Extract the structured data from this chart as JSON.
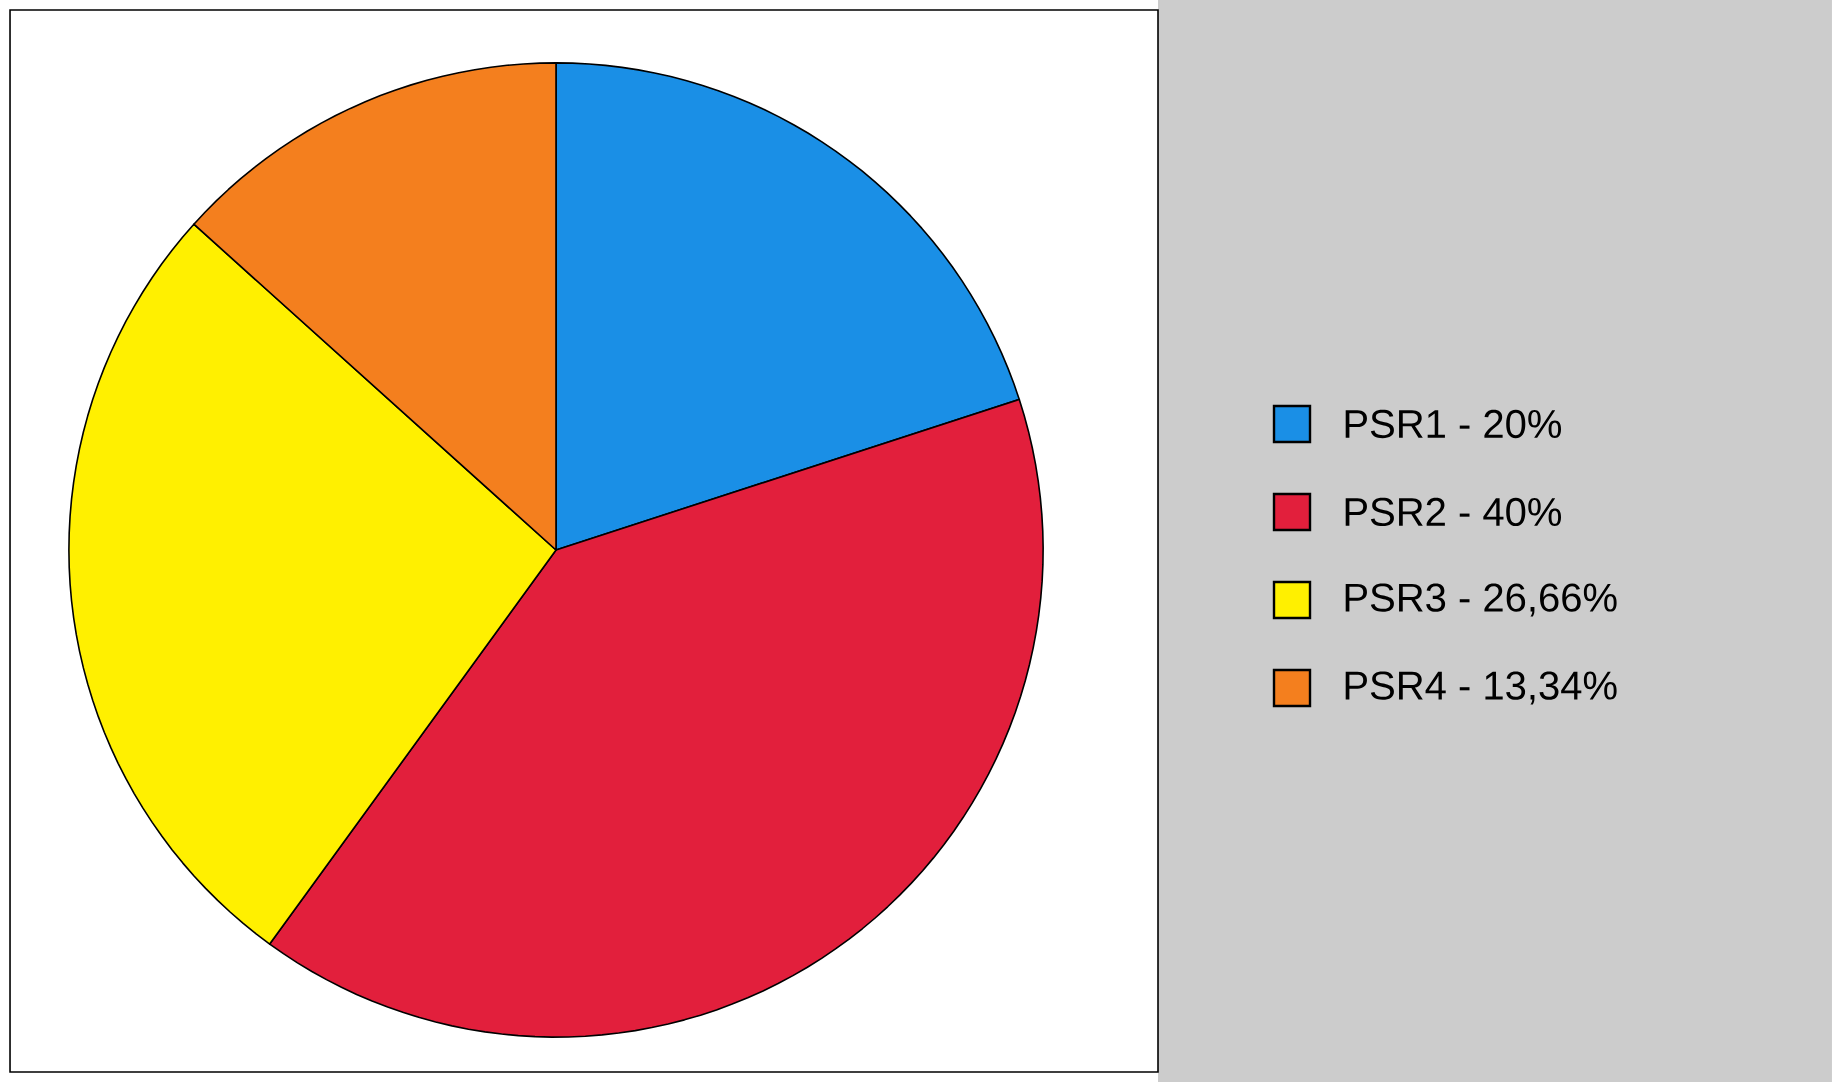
{
  "chart_data": {
    "type": "pie",
    "categories": [
      "PSR1 - 20%",
      "PSR2 - 40%",
      "PSR3 - 26,66%",
      "PSR4 - 13,34%"
    ],
    "values": [
      20,
      40,
      26.66,
      13.34
    ],
    "colors": [
      "#1a8fe6",
      "#e21f3c",
      "#fff000",
      "#f47f1e"
    ],
    "legend": "right"
  }
}
